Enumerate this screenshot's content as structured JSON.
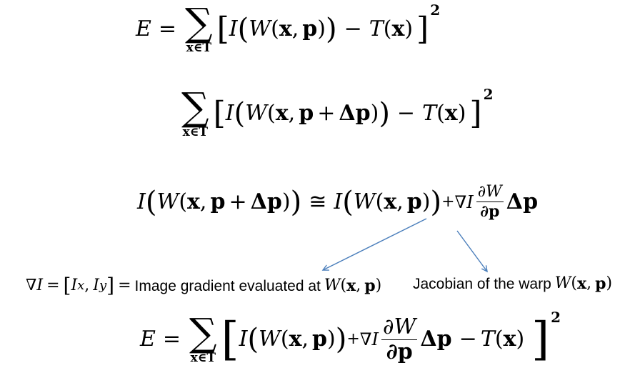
{
  "eq1": {
    "lhs": "E",
    "eq": "=",
    "sigma": "∑",
    "sub": "x∈T",
    "I": "I",
    "W": "W",
    "x": "x",
    "comma": ",",
    "p": "p",
    "minus": "−",
    "T": "T",
    "x2": "x",
    "sup": "2"
  },
  "eq2": {
    "sigma": "∑",
    "sub": "x∈T",
    "I": "I",
    "W": "W",
    "x": "x",
    "comma": ",",
    "p": "p",
    "plus": "+",
    "dp": "Δp",
    "minus": "−",
    "T": "T",
    "x2": "x",
    "sup": "2"
  },
  "eq3": {
    "I": "I",
    "W": "W",
    "x": "x",
    "comma": ",",
    "p": "p",
    "plus": "+",
    "dp": "Δp",
    "approx": "≅",
    "I2": "I",
    "W2": "W",
    "x2": "x",
    "p2": "p",
    "plus2": "+",
    "grad": "∇I",
    "num": "∂W",
    "den": "∂p",
    "dp2": "Δp"
  },
  "annotation_gradient": {
    "lhs": "∇I",
    "eq": "=",
    "Ix": "I",
    "Ix_sub": "x",
    "Iy": "I",
    "Iy_sub": "y",
    "eq2": "=",
    "text": "Image gradient evaluated at",
    "W": "W",
    "x": "x",
    "comma": ",",
    "p": "p"
  },
  "annotation_jacobian": {
    "text": "Jacobian of the warp",
    "W": "W",
    "x": "x",
    "comma": ",",
    "p": "p"
  },
  "eq4": {
    "lhs": "E",
    "eq": "=",
    "sigma": "∑",
    "sub": "x∈T",
    "I": "I",
    "W": "W",
    "x": "x",
    "comma": ",",
    "p": "p",
    "plus": "+",
    "grad": "∇I",
    "num": "∂W",
    "den": "∂p",
    "dp": "Δp",
    "minus": "−",
    "T": "T",
    "x2": "x",
    "sup": "2"
  },
  "colors": {
    "arrow": "#4a7ebb",
    "text": "#000000"
  }
}
